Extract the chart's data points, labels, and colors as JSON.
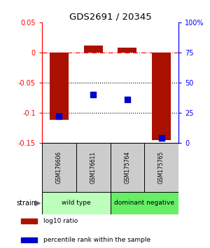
{
  "title": "GDS2691 / 20345",
  "samples": [
    "GSM176606",
    "GSM176611",
    "GSM175764",
    "GSM175765"
  ],
  "log10_ratio": [
    -0.112,
    0.012,
    0.008,
    -0.145
  ],
  "percentile_rank": [
    22,
    40,
    36,
    4
  ],
  "ylim_left": [
    -0.15,
    0.05
  ],
  "ylim_right": [
    0,
    100
  ],
  "yticks_left": [
    -0.15,
    -0.1,
    -0.05,
    0.0,
    0.05
  ],
  "yticks_right": [
    0,
    25,
    50,
    75,
    100
  ],
  "ytick_labels_left": [
    "-0.15",
    "-0.1",
    "-0.05",
    "0",
    "0.05"
  ],
  "ytick_labels_right": [
    "0",
    "25",
    "50",
    "75",
    "100%"
  ],
  "hlines": [
    0.0,
    -0.05,
    -0.1
  ],
  "hline_styles": [
    "dashdot",
    "dotted",
    "dotted"
  ],
  "hline_colors": [
    "red",
    "black",
    "black"
  ],
  "bar_color": "#aa1100",
  "dot_color": "#0000cc",
  "groups": [
    {
      "label": "wild type",
      "indices": [
        0,
        1
      ],
      "color": "#bbffbb"
    },
    {
      "label": "dominant negative",
      "indices": [
        2,
        3
      ],
      "color": "#66ee66"
    }
  ],
  "group_row_label": "strain",
  "legend_items": [
    {
      "color": "#aa1100",
      "label": "log10 ratio"
    },
    {
      "color": "#0000cc",
      "label": "percentile rank within the sample"
    }
  ],
  "bar_width": 0.55,
  "dot_size": 35,
  "sample_box_color": "#cccccc"
}
